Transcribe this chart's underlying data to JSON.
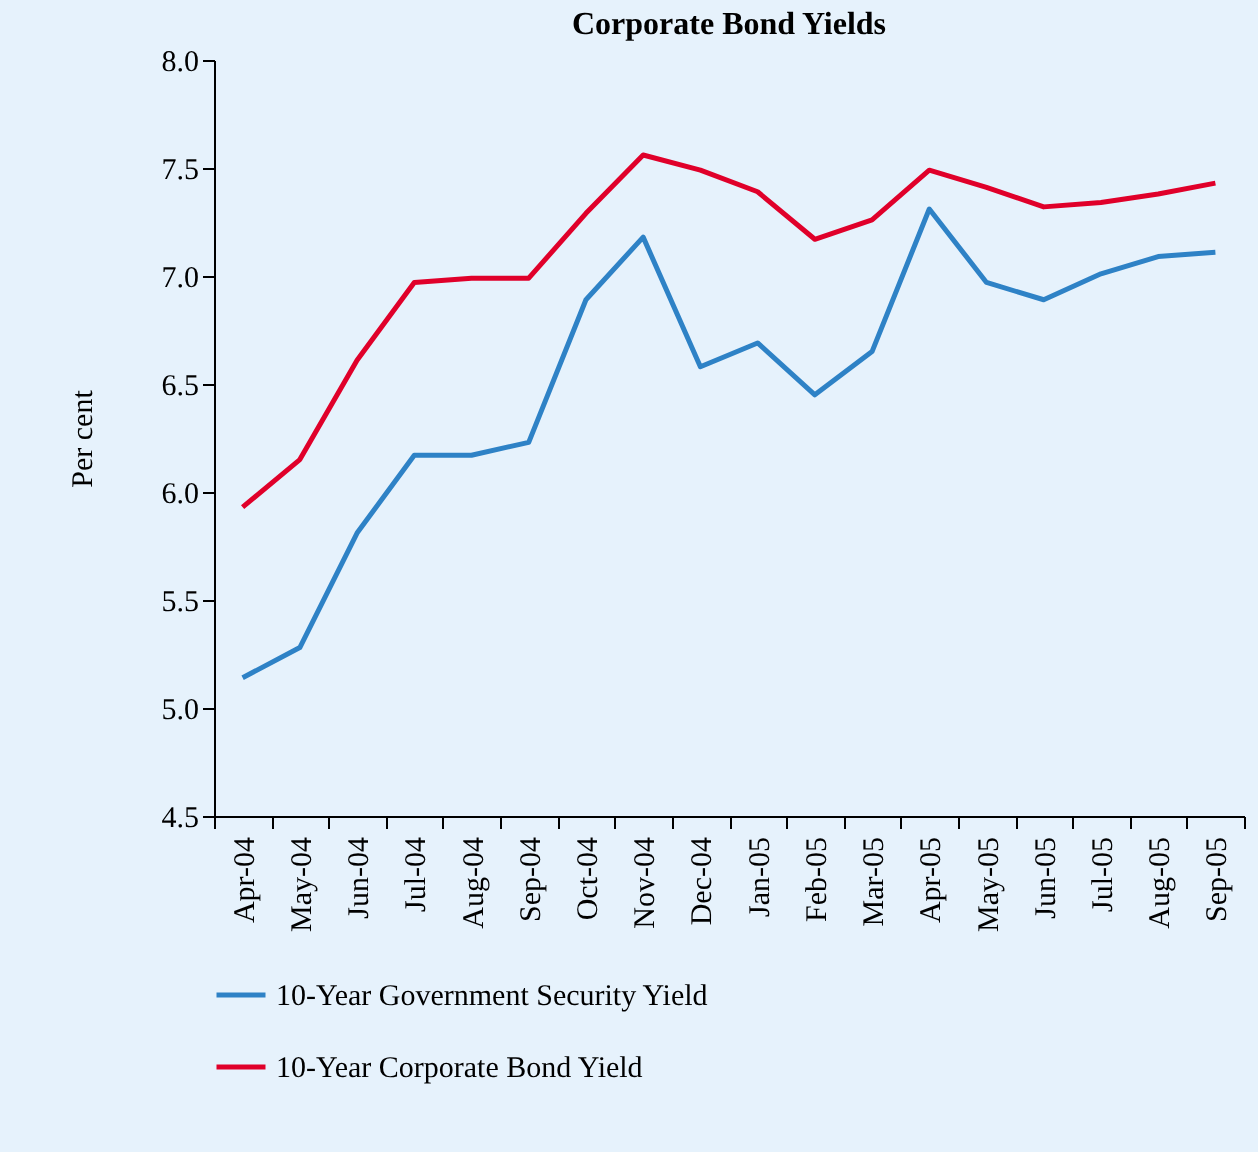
{
  "chart_data": {
    "type": "line",
    "title": "Corporate Bond Yields",
    "ylabel": "Per cent",
    "categories": [
      "Apr-04",
      "May-04",
      "Jun-04",
      "Jul-04",
      "Aug-04",
      "Sep-04",
      "Oct-04",
      "Nov-04",
      "Dec-04",
      "Jan-05",
      "Feb-05",
      "Mar-05",
      "Apr-05",
      "May-05",
      "Jun-05",
      "Jul-05",
      "Aug-05",
      "Sep-05"
    ],
    "series": [
      {
        "name": "10-Year Government Security Yield",
        "color": "#2e82c6",
        "values": [
          5.14,
          5.28,
          5.81,
          6.17,
          6.17,
          6.23,
          6.89,
          7.18,
          6.58,
          6.69,
          6.45,
          6.65,
          7.31,
          6.97,
          6.89,
          7.01,
          7.09,
          7.11
        ]
      },
      {
        "name": "10-Year Corporate Bond Yield",
        "color": "#e0002a",
        "values": [
          5.93,
          6.15,
          6.61,
          6.97,
          6.99,
          6.99,
          7.29,
          7.56,
          7.49,
          7.39,
          7.17,
          7.26,
          7.49,
          7.41,
          7.32,
          7.34,
          7.38,
          7.43
        ]
      }
    ],
    "ylim": [
      4.5,
      8.0
    ],
    "yticks": [
      {
        "value": 4.5,
        "label": "4.5"
      },
      {
        "value": 5,
        "label": "5.0"
      },
      {
        "value": 5.5,
        "label": "5.5"
      },
      {
        "value": 6,
        "label": "6.0"
      },
      {
        "value": 6.5,
        "label": "6.5"
      },
      {
        "value": 7,
        "label": "7.0"
      },
      {
        "value": 7.5,
        "label": "7.5"
      },
      {
        "value": 8,
        "label": "8.0"
      }
    ],
    "grid": false,
    "legend": "bottom",
    "marker": "none",
    "line_style": "solid"
  }
}
